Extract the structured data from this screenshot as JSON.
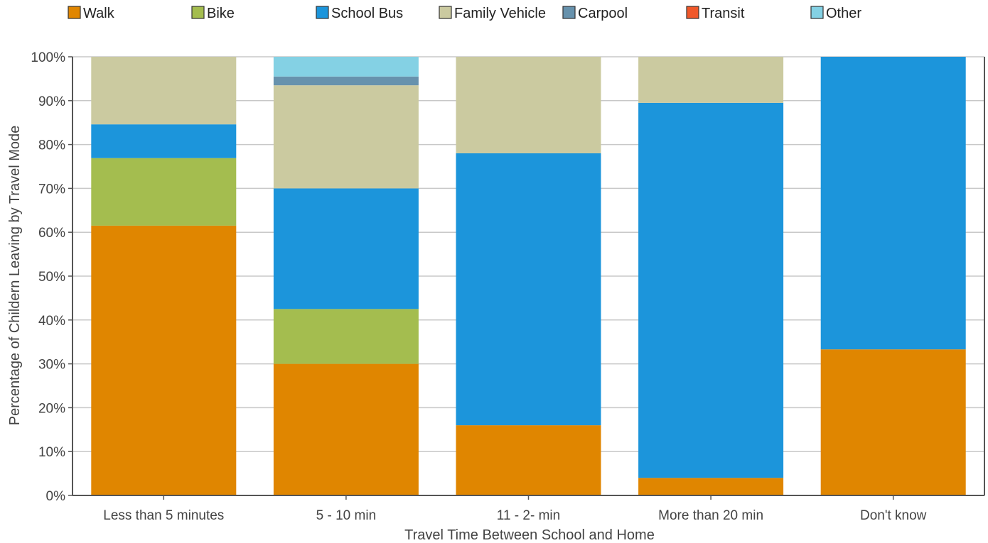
{
  "chart_data": {
    "type": "bar",
    "stacked": true,
    "title": "",
    "xlabel": "Travel Time Between School and Home",
    "ylabel": "Percentage of Childern Leaving by Travel Mode",
    "categories": [
      "Less than 5 minutes",
      "5 - 10 min",
      "11 - 2- min",
      "More than 20 min",
      "Don't know"
    ],
    "ylim": [
      0,
      100
    ],
    "yticks": [
      "0%",
      "10%",
      "20%",
      "30%",
      "40%",
      "50%",
      "60%",
      "70%",
      "80%",
      "90%",
      "100%"
    ],
    "grid": true,
    "legend_position": "top",
    "series": [
      {
        "name": "Walk",
        "color": "#e08600",
        "values": [
          61.5,
          30,
          16,
          4,
          33.3
        ]
      },
      {
        "name": "Bike",
        "color": "#a4bd4f",
        "values": [
          15.4,
          12.5,
          0,
          0,
          0
        ]
      },
      {
        "name": "School Bus",
        "color": "#1c95db",
        "values": [
          7.7,
          27.5,
          62,
          85.5,
          66.7
        ]
      },
      {
        "name": "Family Vehicle",
        "color": "#cbcaa0",
        "values": [
          15.4,
          23.5,
          22,
          10.5,
          0
        ]
      },
      {
        "name": "Carpool",
        "color": "#6792ad",
        "values": [
          0,
          2,
          0,
          0,
          0
        ]
      },
      {
        "name": "Transit",
        "color": "#f0582a",
        "values": [
          0,
          0,
          0,
          0,
          0
        ]
      },
      {
        "name": "Other",
        "color": "#84d1e4",
        "values": [
          0,
          4.5,
          0,
          0,
          0
        ]
      }
    ]
  }
}
